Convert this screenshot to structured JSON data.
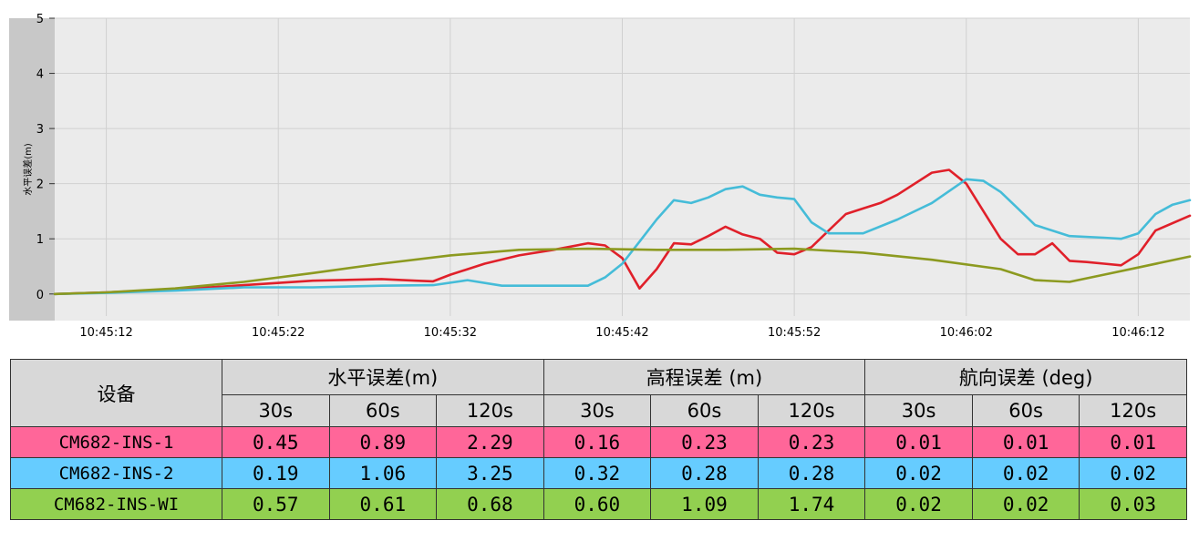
{
  "chart_data": {
    "type": "line",
    "ylabel": "水平误差(m)",
    "xlabel": "",
    "ylim": [
      -0.4,
      5
    ],
    "yticks": [
      0,
      1,
      2,
      3,
      4,
      5
    ],
    "xlim": [
      "10:45:09",
      "10:46:15"
    ],
    "xticks": [
      "10:45:12",
      "10:45:22",
      "10:45:32",
      "10:45:42",
      "10:45:52",
      "10:46:02",
      "10:46:12"
    ],
    "grid": true,
    "series": [
      {
        "color": "#e0202a",
        "x": [
          "10:45:09",
          "10:45:12",
          "10:45:16",
          "10:45:20",
          "10:45:24",
          "10:45:28",
          "10:45:30",
          "10:45:31",
          "10:45:32",
          "10:45:34",
          "10:45:36",
          "10:45:38",
          "10:45:40",
          "10:45:41",
          "10:45:42",
          "10:45:43",
          "10:45:44",
          "10:45:45",
          "10:45:46",
          "10:45:47",
          "10:45:48",
          "10:45:49",
          "10:45:50",
          "10:45:51",
          "10:45:52",
          "10:45:53",
          "10:45:54",
          "10:45:55",
          "10:45:56",
          "10:45:57",
          "10:45:58",
          "10:46:00",
          "10:46:01",
          "10:46:02",
          "10:46:03",
          "10:46:04",
          "10:46:05",
          "10:46:06",
          "10:46:07",
          "10:46:08",
          "10:46:09",
          "10:46:10",
          "10:46:11",
          "10:46:12",
          "10:46:13",
          "10:46:15"
        ],
        "values": [
          0.0,
          0.03,
          0.08,
          0.16,
          0.24,
          0.27,
          0.24,
          0.23,
          0.35,
          0.55,
          0.7,
          0.8,
          0.92,
          0.88,
          0.65,
          0.1,
          0.45,
          0.92,
          0.9,
          1.05,
          1.22,
          1.08,
          1.0,
          0.75,
          0.72,
          0.85,
          1.15,
          1.45,
          1.55,
          1.65,
          1.8,
          2.2,
          2.25,
          2.0,
          1.5,
          1.0,
          0.72,
          0.72,
          0.92,
          0.6,
          0.58,
          0.55,
          0.52,
          0.72,
          1.15,
          1.42
        ]
      },
      {
        "color": "#45bcd8",
        "x": [
          "10:45:09",
          "10:45:12",
          "10:45:16",
          "10:45:20",
          "10:45:24",
          "10:45:28",
          "10:45:31",
          "10:45:33",
          "10:45:35",
          "10:45:38",
          "10:45:40",
          "10:45:41",
          "10:45:42",
          "10:45:43",
          "10:45:44",
          "10:45:45",
          "10:45:46",
          "10:45:47",
          "10:45:48",
          "10:45:49",
          "10:45:50",
          "10:45:51",
          "10:45:52",
          "10:45:53",
          "10:45:54",
          "10:45:56",
          "10:45:58",
          "10:46:00",
          "10:46:02",
          "10:46:03",
          "10:46:04",
          "10:46:05",
          "10:46:06",
          "10:46:08",
          "10:46:10",
          "10:46:11",
          "10:46:12",
          "10:46:13",
          "10:46:14",
          "10:46:15"
        ],
        "values": [
          0.0,
          0.02,
          0.06,
          0.12,
          0.12,
          0.15,
          0.16,
          0.25,
          0.15,
          0.15,
          0.15,
          0.3,
          0.55,
          0.95,
          1.35,
          1.7,
          1.65,
          1.75,
          1.9,
          1.95,
          1.8,
          1.75,
          1.72,
          1.3,
          1.1,
          1.1,
          1.35,
          1.65,
          2.08,
          2.05,
          1.85,
          1.55,
          1.25,
          1.05,
          1.02,
          1.0,
          1.1,
          1.45,
          1.62,
          1.7
        ]
      },
      {
        "color": "#8c9a20",
        "x": [
          "10:45:09",
          "10:45:12",
          "10:45:16",
          "10:45:20",
          "10:45:24",
          "10:45:28",
          "10:45:32",
          "10:45:36",
          "10:45:40",
          "10:45:44",
          "10:45:48",
          "10:45:52",
          "10:45:56",
          "10:46:00",
          "10:46:04",
          "10:46:06",
          "10:46:08",
          "10:46:10",
          "10:46:12",
          "10:46:15"
        ],
        "values": [
          0.0,
          0.03,
          0.1,
          0.22,
          0.38,
          0.55,
          0.7,
          0.8,
          0.82,
          0.8,
          0.8,
          0.82,
          0.75,
          0.62,
          0.45,
          0.25,
          0.22,
          0.35,
          0.48,
          0.68
        ]
      }
    ]
  },
  "table": {
    "device_header": "设备",
    "groups": [
      "水平误差(m)",
      "高程误差 (m)",
      "航向误差 (deg)"
    ],
    "windows": [
      "30s",
      "60s",
      "120s"
    ],
    "rows": [
      {
        "device": "CM682-INS-1",
        "color": "#ff6699",
        "values": [
          "0.45",
          "0.89",
          "2.29",
          "0.16",
          "0.23",
          "0.23",
          "0.01",
          "0.01",
          "0.01"
        ]
      },
      {
        "device": "CM682-INS-2",
        "color": "#66ccff",
        "values": [
          "0.19",
          "1.06",
          "3.25",
          "0.32",
          "0.28",
          "0.28",
          "0.02",
          "0.02",
          "0.02"
        ]
      },
      {
        "device": "CM682-INS-WI",
        "color": "#92d050",
        "values": [
          "0.57",
          "0.61",
          "0.68",
          "0.60",
          "1.09",
          "1.74",
          "0.02",
          "0.02",
          "0.03"
        ]
      }
    ]
  }
}
